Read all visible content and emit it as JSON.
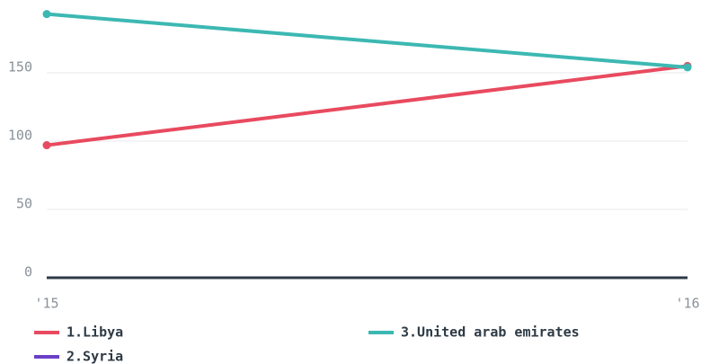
{
  "chart_data": {
    "type": "line",
    "categories": [
      "'15",
      "'16"
    ],
    "series": [
      {
        "name": "1.Libya",
        "color": "#e84a5f",
        "values": [
          97,
          155
        ]
      },
      {
        "name": "2.Syria",
        "color": "#6a3fc7",
        "values": [
          null,
          null
        ]
      },
      {
        "name": "3.United arab emirates",
        "color": "#3cb8b2",
        "values": [
          193,
          154
        ]
      }
    ],
    "ylim": [
      0,
      200
    ],
    "yticks": [
      0,
      50,
      100,
      150
    ],
    "grid": true
  }
}
